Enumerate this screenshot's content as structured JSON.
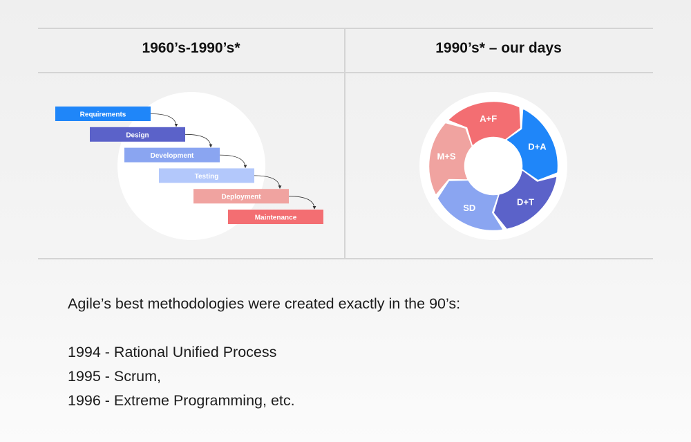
{
  "columns": {
    "left_title": "1960’s-1990’s*",
    "right_title": "1990’s* – our days"
  },
  "waterfall": {
    "steps": [
      {
        "label": "Requirements",
        "color": "#1f86f9"
      },
      {
        "label": "Design",
        "color": "#5b62c9"
      },
      {
        "label": "Development",
        "color": "#8aa5f1"
      },
      {
        "label": "Testing",
        "color": "#b3c8fb"
      },
      {
        "label": "Deployment",
        "color": "#f0a3a0"
      },
      {
        "label": "Maintenance",
        "color": "#f36e72"
      }
    ]
  },
  "cycle": {
    "segments": [
      {
        "label": "A+F",
        "color": "#f36e72"
      },
      {
        "label": "D+A",
        "color": "#1f86f9"
      },
      {
        "label": "D+T",
        "color": "#5b62c9"
      },
      {
        "label": "SD",
        "color": "#8aa5f1"
      },
      {
        "label": "M+S",
        "color": "#f0a3a0"
      }
    ]
  },
  "text": {
    "intro": "Agile’s best methodologies were created exactly in the 90’s:",
    "items": [
      "1994 - Rational Unified Process",
      "1995 - Scrum,",
      "1996 - Extreme Programming, etc."
    ]
  }
}
